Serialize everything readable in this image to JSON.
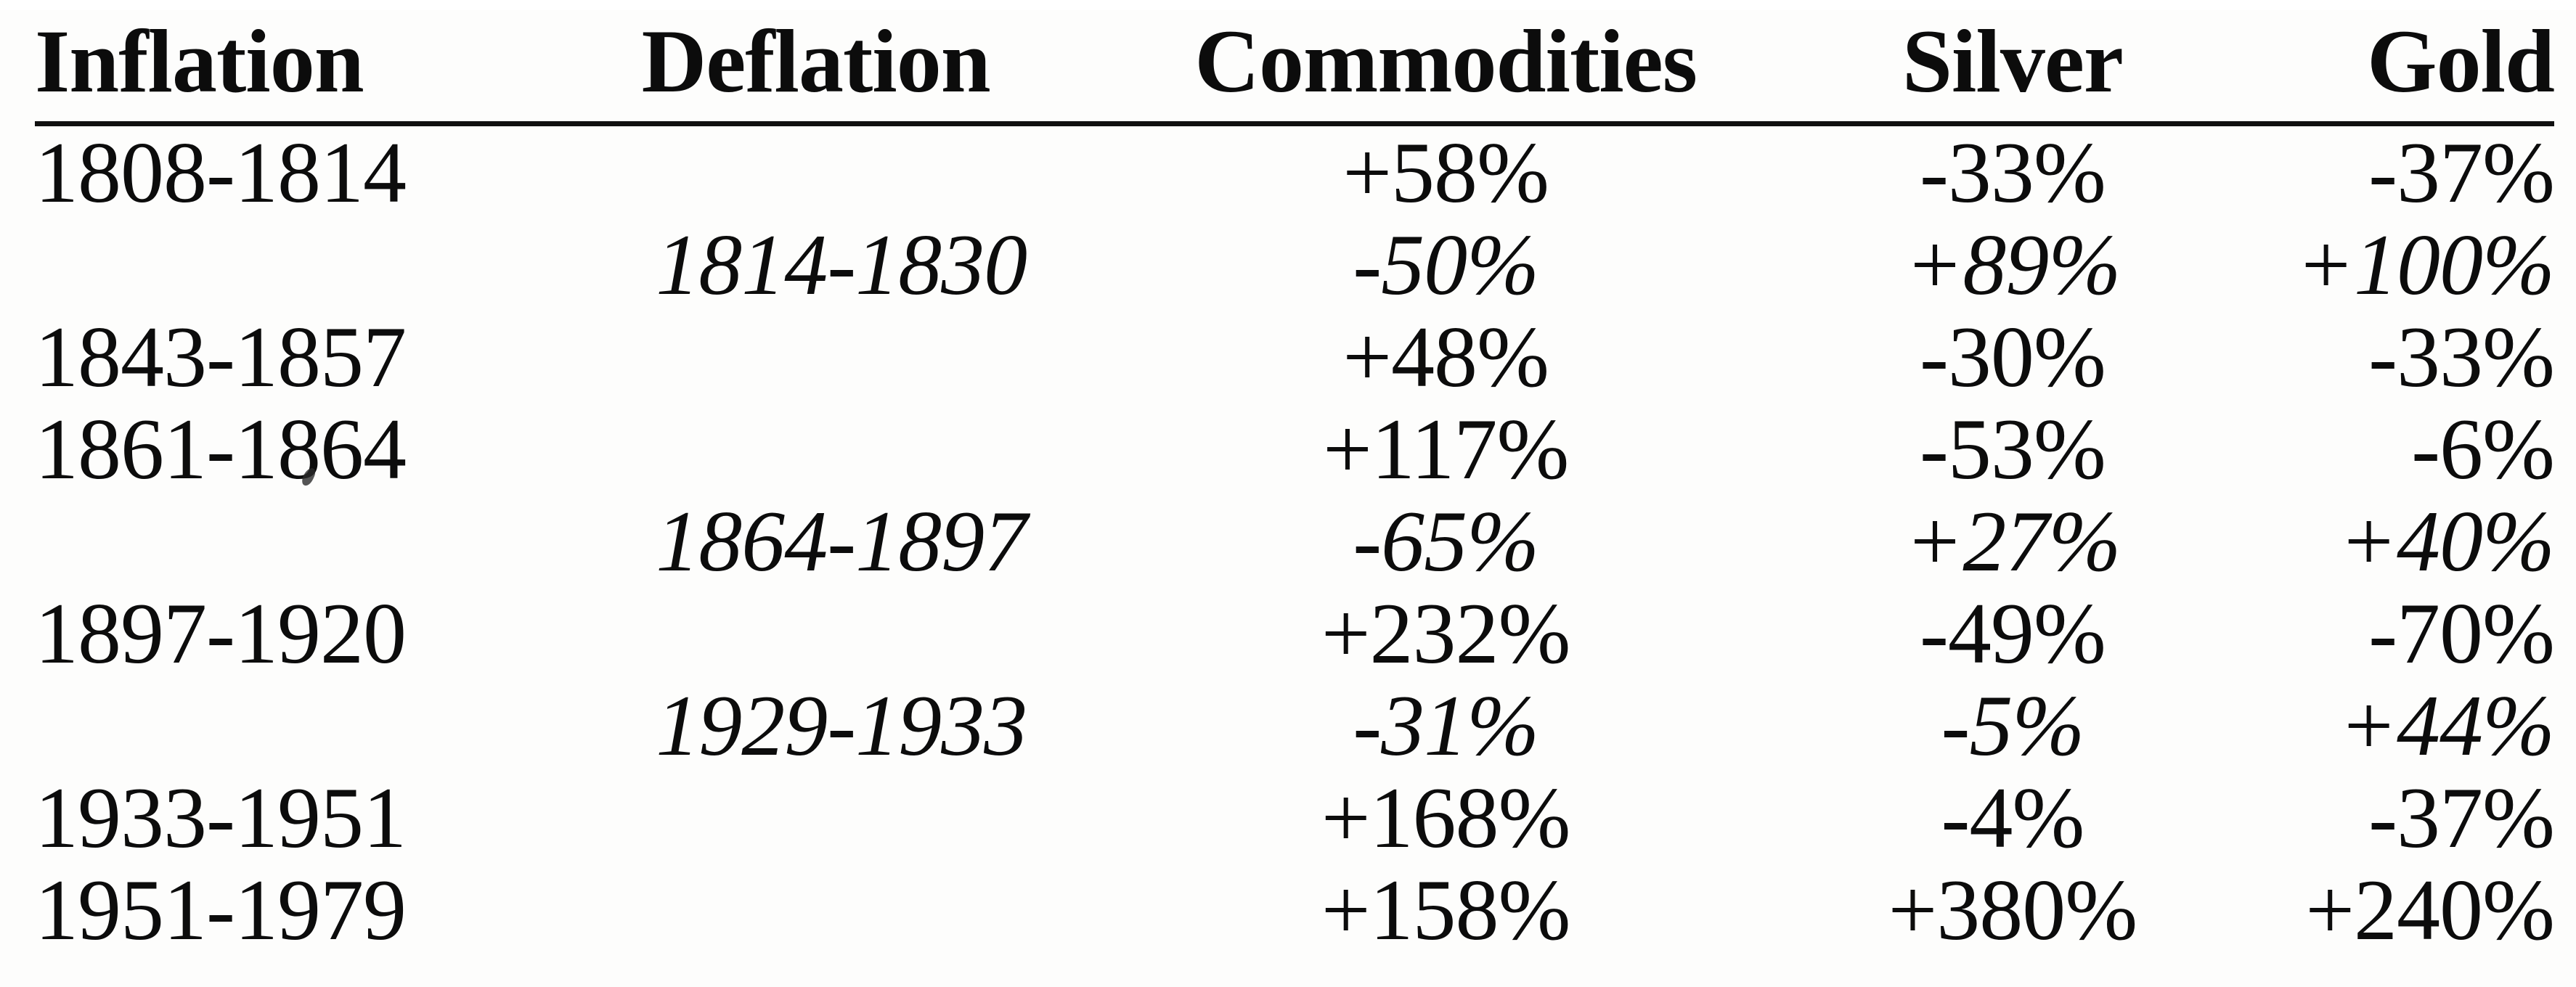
{
  "document": {
    "kind": "scanned-table",
    "text_color": "#0c0c0c",
    "background_color": "#fdfdfc",
    "rule_color": "#101010"
  },
  "table": {
    "columns": [
      "Inflation",
      "Deflation",
      "Commodities",
      "Silver",
      "Gold"
    ],
    "rows": [
      {
        "period_type": "inflation",
        "inflation": "1808-1814",
        "deflation": "",
        "commodities": "+58%",
        "silver": "-33%",
        "gold": "-37%"
      },
      {
        "period_type": "deflation",
        "inflation": "",
        "deflation": "1814-1830",
        "commodities": "-50%",
        "silver": "+89%",
        "gold": "+100%"
      },
      {
        "period_type": "inflation",
        "inflation": "1843-1857",
        "deflation": "",
        "commodities": "+48%",
        "silver": "-30%",
        "gold": "-33%"
      },
      {
        "period_type": "inflation",
        "inflation": "1861-1864",
        "deflation": "",
        "commodities": "+117%",
        "silver": "-53%",
        "gold": "-6%"
      },
      {
        "period_type": "deflation",
        "inflation": "",
        "deflation": "1864-1897",
        "commodities": "-65%",
        "silver": "+27%",
        "gold": "+40%"
      },
      {
        "period_type": "inflation",
        "inflation": "1897-1920",
        "deflation": "",
        "commodities": "+232%",
        "silver": "-49%",
        "gold": "-70%"
      },
      {
        "period_type": "deflation",
        "inflation": "",
        "deflation": "1929-1933",
        "commodities": "-31%",
        "silver": "-5%",
        "gold": "+44%"
      },
      {
        "period_type": "inflation",
        "inflation": "1933-1951",
        "deflation": "",
        "commodities": "+168%",
        "silver": "-4%",
        "gold": "-37%"
      },
      {
        "period_type": "inflation",
        "inflation": "1951-1979",
        "deflation": "",
        "commodities": "+158%",
        "silver": "+380%",
        "gold": "+240%"
      }
    ]
  }
}
